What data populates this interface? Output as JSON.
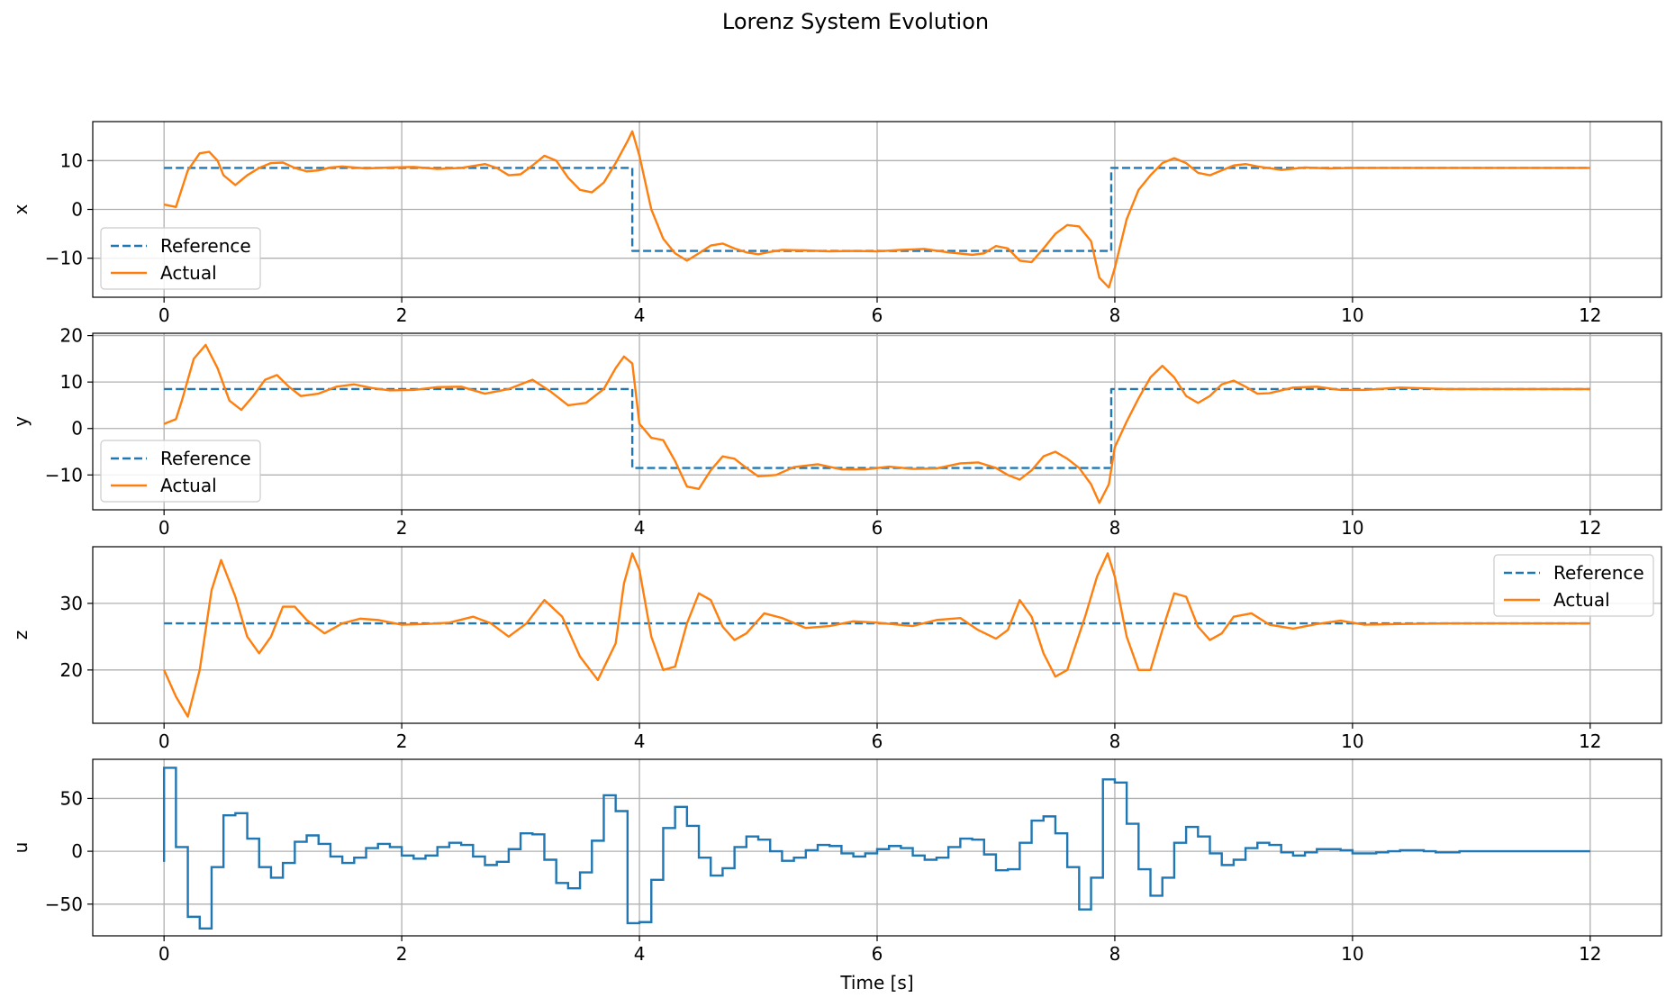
{
  "figure": {
    "title": "Lorenz System Evolution"
  },
  "colors": {
    "reference": "#1f77b4",
    "actual": "#ff7f0e",
    "control": "#1f77b4",
    "grid": "#b0b0b0"
  },
  "chart_data": [
    {
      "type": "line",
      "id": "x",
      "ylabel": "x",
      "xlabel": "",
      "xlim": [
        -0.6,
        12.6
      ],
      "ylim": [
        -18,
        18
      ],
      "xticks": [
        0,
        2,
        4,
        6,
        8,
        10,
        12
      ],
      "yticks": [
        -10,
        0,
        10
      ],
      "grid": true,
      "legend": {
        "position": "lower-left",
        "entries": [
          "Reference",
          "Actual"
        ]
      },
      "series": [
        {
          "name": "Reference",
          "style": "dashed",
          "x": [
            0,
            3.94,
            3.94,
            7.97,
            7.97,
            12
          ],
          "y": [
            8.5,
            8.5,
            -8.5,
            -8.5,
            8.5,
            8.5
          ]
        },
        {
          "name": "Actual",
          "style": "solid",
          "x": [
            0,
            0.1,
            0.2,
            0.3,
            0.38,
            0.45,
            0.5,
            0.6,
            0.7,
            0.8,
            0.9,
            1.0,
            1.1,
            1.2,
            1.3,
            1.4,
            1.5,
            1.7,
            1.9,
            2.1,
            2.3,
            2.5,
            2.7,
            2.8,
            2.9,
            3.0,
            3.1,
            3.2,
            3.3,
            3.4,
            3.5,
            3.6,
            3.7,
            3.8,
            3.9,
            3.94,
            4.0,
            4.1,
            4.2,
            4.3,
            4.4,
            4.5,
            4.6,
            4.7,
            4.8,
            4.9,
            5.0,
            5.1,
            5.2,
            5.4,
            5.6,
            5.8,
            6.0,
            6.2,
            6.4,
            6.6,
            6.8,
            6.9,
            7.0,
            7.1,
            7.2,
            7.3,
            7.4,
            7.5,
            7.6,
            7.7,
            7.8,
            7.87,
            7.95,
            8.0,
            8.1,
            8.2,
            8.3,
            8.4,
            8.5,
            8.6,
            8.7,
            8.8,
            8.9,
            9.0,
            9.1,
            9.2,
            9.4,
            9.6,
            9.8,
            10.0,
            10.5,
            11.0,
            11.5,
            12.0
          ],
          "y": [
            1,
            0.5,
            8,
            11.5,
            11.8,
            10,
            7,
            5,
            7,
            8.5,
            9.5,
            9.6,
            8.5,
            7.8,
            8,
            8.6,
            8.8,
            8.4,
            8.6,
            8.7,
            8.3,
            8.5,
            9.3,
            8.5,
            7,
            7.2,
            9,
            11,
            10,
            6.5,
            4,
            3.5,
            5.5,
            9.5,
            14,
            16,
            11,
            0,
            -6,
            -9,
            -10.5,
            -9,
            -7.4,
            -7,
            -8,
            -8.8,
            -9.2,
            -8.7,
            -8.3,
            -8.4,
            -8.6,
            -8.5,
            -8.6,
            -8.3,
            -8.1,
            -8.8,
            -9.3,
            -9,
            -7.5,
            -8,
            -10.5,
            -10.8,
            -8,
            -5,
            -3.2,
            -3.5,
            -6.5,
            -14,
            -16,
            -12,
            -2,
            4,
            7,
            9.5,
            10.5,
            9.5,
            7.5,
            7,
            8,
            9,
            9.3,
            8.8,
            8.1,
            8.6,
            8.4,
            8.5,
            8.5,
            8.5,
            8.5,
            8.5
          ]
        }
      ]
    },
    {
      "type": "line",
      "id": "y",
      "ylabel": "y",
      "xlabel": "",
      "xlim": [
        -0.6,
        12.6
      ],
      "ylim": [
        -17.5,
        20.5
      ],
      "xticks": [
        0,
        2,
        4,
        6,
        8,
        10,
        12
      ],
      "yticks": [
        -10,
        0,
        10,
        20
      ],
      "grid": true,
      "legend": {
        "position": "lower-left",
        "entries": [
          "Reference",
          "Actual"
        ]
      },
      "series": [
        {
          "name": "Reference",
          "style": "dashed",
          "x": [
            0,
            3.94,
            3.94,
            7.97,
            7.97,
            12
          ],
          "y": [
            8.5,
            8.5,
            -8.5,
            -8.5,
            8.5,
            8.5
          ]
        },
        {
          "name": "Actual",
          "style": "solid",
          "x": [
            0,
            0.1,
            0.15,
            0.25,
            0.35,
            0.45,
            0.55,
            0.65,
            0.75,
            0.85,
            0.95,
            1.05,
            1.15,
            1.3,
            1.45,
            1.6,
            1.75,
            1.9,
            2.1,
            2.3,
            2.5,
            2.7,
            2.9,
            3.1,
            3.25,
            3.4,
            3.55,
            3.7,
            3.8,
            3.87,
            3.94,
            4.0,
            4.1,
            4.2,
            4.3,
            4.4,
            4.5,
            4.6,
            4.7,
            4.8,
            4.9,
            5.0,
            5.15,
            5.3,
            5.5,
            5.7,
            5.9,
            6.1,
            6.3,
            6.5,
            6.7,
            6.85,
            7.0,
            7.1,
            7.2,
            7.3,
            7.4,
            7.5,
            7.6,
            7.7,
            7.8,
            7.87,
            7.95,
            8.0,
            8.1,
            8.2,
            8.3,
            8.4,
            8.5,
            8.6,
            8.7,
            8.8,
            8.9,
            9.0,
            9.1,
            9.2,
            9.3,
            9.5,
            9.7,
            9.9,
            10.1,
            10.4,
            10.8,
            11.5,
            12.0
          ],
          "y": [
            1,
            2,
            6,
            15,
            18,
            13,
            6,
            4,
            7,
            10.5,
            11.5,
            9,
            7,
            7.5,
            9,
            9.5,
            8.7,
            8.2,
            8.3,
            8.9,
            9,
            7.5,
            8.5,
            10.5,
            8,
            5,
            5.5,
            8.5,
            13,
            15.5,
            14,
            1,
            -2,
            -2.5,
            -7,
            -12.5,
            -13,
            -9,
            -6,
            -6.5,
            -8.5,
            -10.3,
            -10,
            -8.3,
            -7.7,
            -8.8,
            -8.8,
            -8.2,
            -8.7,
            -8.6,
            -7.5,
            -7.3,
            -8.5,
            -10,
            -11,
            -9,
            -6,
            -5,
            -6.5,
            -8.5,
            -12,
            -16,
            -12,
            -4,
            1.5,
            6.5,
            11,
            13.5,
            11,
            7,
            5.5,
            7,
            9.5,
            10.3,
            9,
            7.5,
            7.6,
            8.8,
            9,
            8.3,
            8.3,
            8.8,
            8.5,
            8.5,
            8.5
          ]
        }
      ]
    },
    {
      "type": "line",
      "id": "z",
      "ylabel": "z",
      "xlabel": "",
      "xlim": [
        -0.6,
        12.6
      ],
      "ylim": [
        12,
        38.5
      ],
      "xticks": [
        0,
        2,
        4,
        6,
        8,
        10,
        12
      ],
      "yticks": [
        20,
        30
      ],
      "grid": true,
      "legend": {
        "position": "top-right",
        "entries": [
          "Reference",
          "Actual"
        ]
      },
      "series": [
        {
          "name": "Reference",
          "style": "dashed",
          "x": [
            0,
            12
          ],
          "y": [
            27,
            27
          ]
        },
        {
          "name": "Actual",
          "style": "solid",
          "x": [
            0,
            0.1,
            0.2,
            0.3,
            0.4,
            0.48,
            0.6,
            0.7,
            0.8,
            0.9,
            1.0,
            1.1,
            1.2,
            1.35,
            1.5,
            1.65,
            1.8,
            2.0,
            2.2,
            2.4,
            2.6,
            2.75,
            2.9,
            3.05,
            3.2,
            3.35,
            3.5,
            3.65,
            3.8,
            3.87,
            3.94,
            4.0,
            4.1,
            4.2,
            4.3,
            4.4,
            4.5,
            4.6,
            4.7,
            4.8,
            4.9,
            5.05,
            5.2,
            5.4,
            5.6,
            5.8,
            6.0,
            6.3,
            6.5,
            6.7,
            6.85,
            7.0,
            7.1,
            7.2,
            7.3,
            7.4,
            7.5,
            7.6,
            7.75,
            7.85,
            7.94,
            8.0,
            8.1,
            8.2,
            8.3,
            8.4,
            8.5,
            8.6,
            8.7,
            8.8,
            8.9,
            9.0,
            9.15,
            9.3,
            9.5,
            9.7,
            9.9,
            10.1,
            10.4,
            10.8,
            11.2,
            11.6,
            12.0
          ],
          "y": [
            20,
            16,
            13,
            20,
            32,
            36.5,
            31,
            25,
            22.5,
            25,
            29.5,
            29.5,
            27.5,
            25.5,
            27,
            27.7,
            27.5,
            26.8,
            26.9,
            27.1,
            28,
            27,
            25,
            27,
            30.5,
            28,
            22,
            18.5,
            24,
            33,
            37.5,
            35,
            25,
            20,
            20.5,
            27,
            31.5,
            30.5,
            26.5,
            24.5,
            25.5,
            28.5,
            27.8,
            26.3,
            26.6,
            27.3,
            27.1,
            26.6,
            27.5,
            27.8,
            26,
            24.7,
            26,
            30.5,
            28,
            22.5,
            19,
            20,
            28,
            34,
            37.5,
            34,
            25,
            20,
            20,
            26,
            31.5,
            31,
            26.5,
            24.5,
            25.5,
            28,
            28.5,
            26.8,
            26.2,
            26.9,
            27.4,
            26.8,
            26.9,
            27.0,
            27.0,
            27.0,
            27.0
          ]
        }
      ]
    },
    {
      "type": "line",
      "id": "u",
      "ylabel": "u",
      "xlabel": "Time [s]",
      "xlim": [
        -0.6,
        12.6
      ],
      "ylim": [
        -80,
        87
      ],
      "xticks": [
        0,
        2,
        4,
        6,
        8,
        10,
        12
      ],
      "yticks": [
        -50,
        0,
        50
      ],
      "grid": true,
      "legend": null,
      "series": [
        {
          "name": "",
          "style": "step",
          "dt": 0.1,
          "start": -10,
          "values": [
            79,
            4,
            -62,
            -73,
            -15,
            34,
            36,
            12,
            -15,
            -25,
            -11,
            9,
            15,
            7,
            -5,
            -11,
            -6,
            3,
            7,
            4,
            -4,
            -7,
            -4,
            4,
            8,
            6,
            -5,
            -13,
            -10,
            2,
            17,
            16,
            -8,
            -30,
            -35,
            -20,
            10,
            53,
            38,
            -68,
            -67,
            -27,
            22,
            42,
            24,
            -6,
            -23,
            -16,
            4,
            14,
            11,
            0,
            -9,
            -6,
            1,
            6,
            5,
            -2,
            -5,
            -2,
            2,
            5,
            3,
            -4,
            -8,
            -6,
            4,
            12,
            11,
            -3,
            -18,
            -17,
            8,
            29,
            33,
            17,
            -15,
            -55,
            -25,
            68,
            65,
            26,
            -17,
            -42,
            -25,
            8,
            23,
            14,
            -2,
            -13,
            -8,
            3,
            8,
            6,
            -1,
            -4,
            -1,
            2,
            2,
            1,
            -2,
            -2,
            -1,
            0,
            1,
            1,
            0,
            -1,
            -1,
            0,
            0,
            0,
            0,
            0,
            0,
            0,
            0,
            0,
            0,
            0
          ]
        }
      ]
    }
  ]
}
